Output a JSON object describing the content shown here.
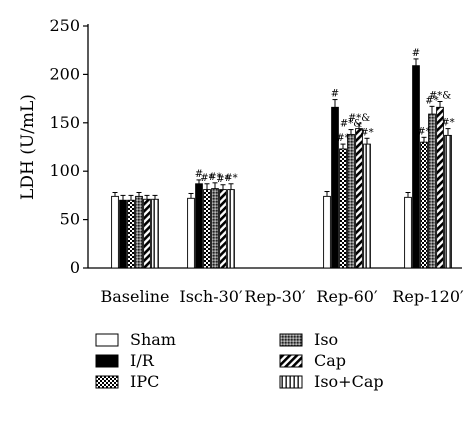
{
  "chart_data": {
    "type": "bar",
    "ylabel": "LDH (U/mL)",
    "ylim": [
      0,
      250
    ],
    "yticks": [
      0,
      50,
      100,
      150,
      200,
      250
    ],
    "categories": [
      "Baseline",
      "Isch-30′",
      "Rep-30′",
      "Rep-60′",
      "Rep-120′"
    ],
    "legend_position": "bottom",
    "series": [
      {
        "name": "Sham",
        "pattern": "white",
        "values": [
          74,
          72,
          null,
          74,
          73
        ],
        "errors": [
          4,
          5,
          null,
          5,
          5
        ],
        "annotations": [
          "",
          "",
          "",
          "",
          ""
        ]
      },
      {
        "name": "I/R",
        "pattern": "black",
        "values": [
          70,
          87,
          null,
          166,
          209
        ],
        "errors": [
          5,
          4,
          null,
          8,
          7
        ],
        "annotations": [
          "",
          "#",
          "",
          "#",
          "#"
        ]
      },
      {
        "name": "IPC",
        "pattern": "checker",
        "values": [
          70,
          81,
          null,
          123,
          130
        ],
        "errors": [
          5,
          6,
          null,
          5,
          5
        ],
        "annotations": [
          "",
          "#*",
          "",
          "#*",
          "#*"
        ]
      },
      {
        "name": "Iso",
        "pattern": "dense",
        "values": [
          74,
          82,
          null,
          138,
          159
        ],
        "errors": [
          4,
          6,
          null,
          5,
          8
        ],
        "annotations": [
          "",
          "#*",
          "",
          "#*&",
          "#*"
        ]
      },
      {
        "name": "Cap",
        "pattern": "diagonal",
        "values": [
          71,
          81,
          null,
          144,
          166
        ],
        "errors": [
          4,
          5,
          null,
          5,
          6
        ],
        "annotations": [
          "",
          "#*",
          "",
          "#*&",
          "#*&"
        ]
      },
      {
        "name": "Iso+Cap",
        "pattern": "vertical",
        "values": [
          71,
          81,
          null,
          128,
          137
        ],
        "errors": [
          4,
          6,
          null,
          6,
          7
        ],
        "annotations": [
          "",
          "#*",
          "",
          "#*",
          "#*"
        ]
      }
    ]
  }
}
